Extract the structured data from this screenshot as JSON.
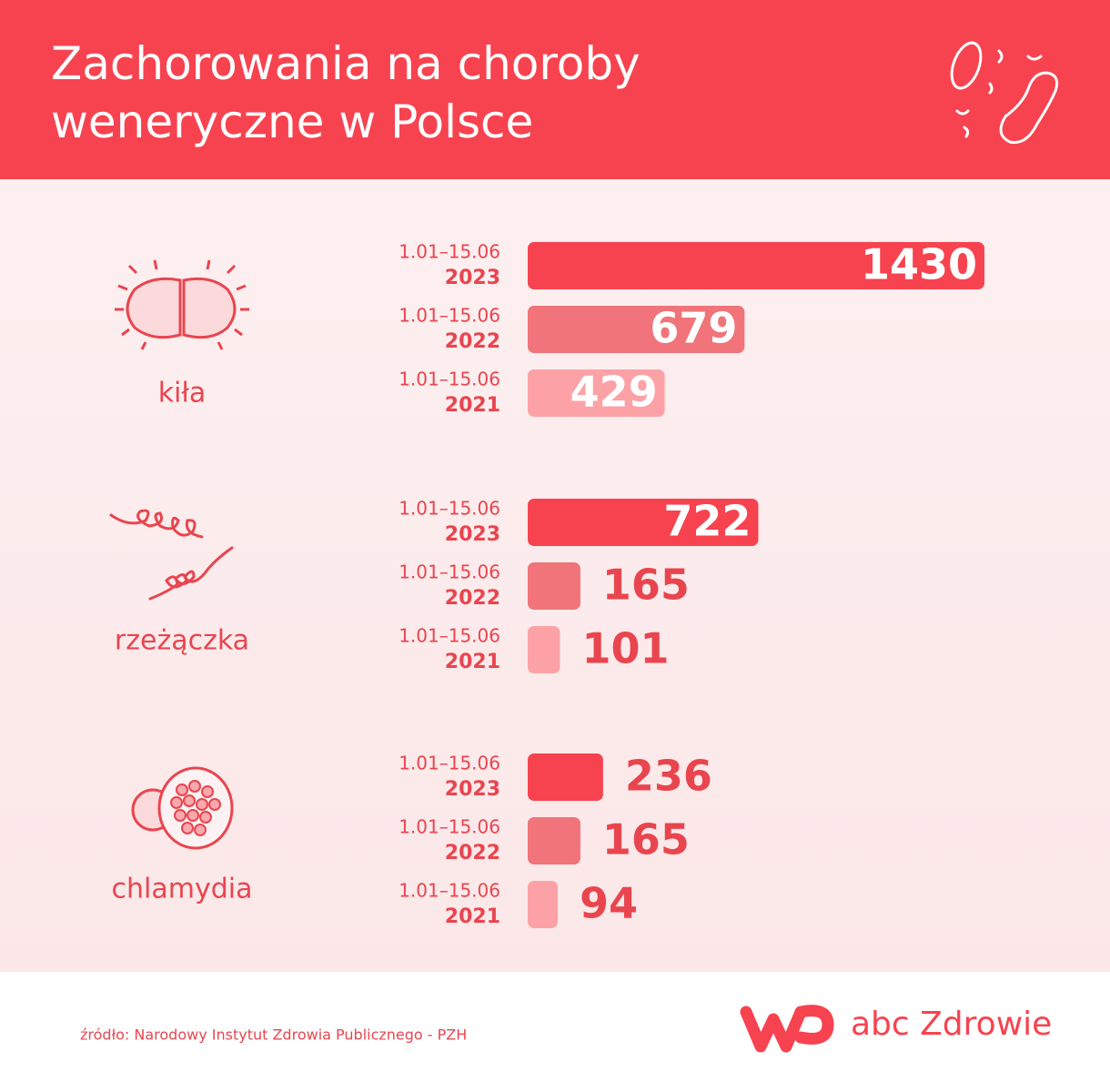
{
  "chart_data": {
    "type": "bar",
    "title": "Zachorowania na choroby weneryczne w Polsce",
    "period_label": "1.01–15.06",
    "categories": [
      "kiła",
      "rzeżączka",
      "chlamydia"
    ],
    "series": [
      {
        "name": "2023",
        "color": "#f7434f",
        "values": [
          1430,
          722,
          236
        ]
      },
      {
        "name": "2022",
        "color": "#f07479",
        "values": [
          679,
          165,
          165
        ]
      },
      {
        "name": "2021",
        "color": "#fca2a7",
        "values": [
          429,
          101,
          94
        ]
      }
    ],
    "source": "źródło: Narodowy Instytut Zdrowia Publicznego - PZH",
    "brand": "abc Zdrowie"
  }
}
